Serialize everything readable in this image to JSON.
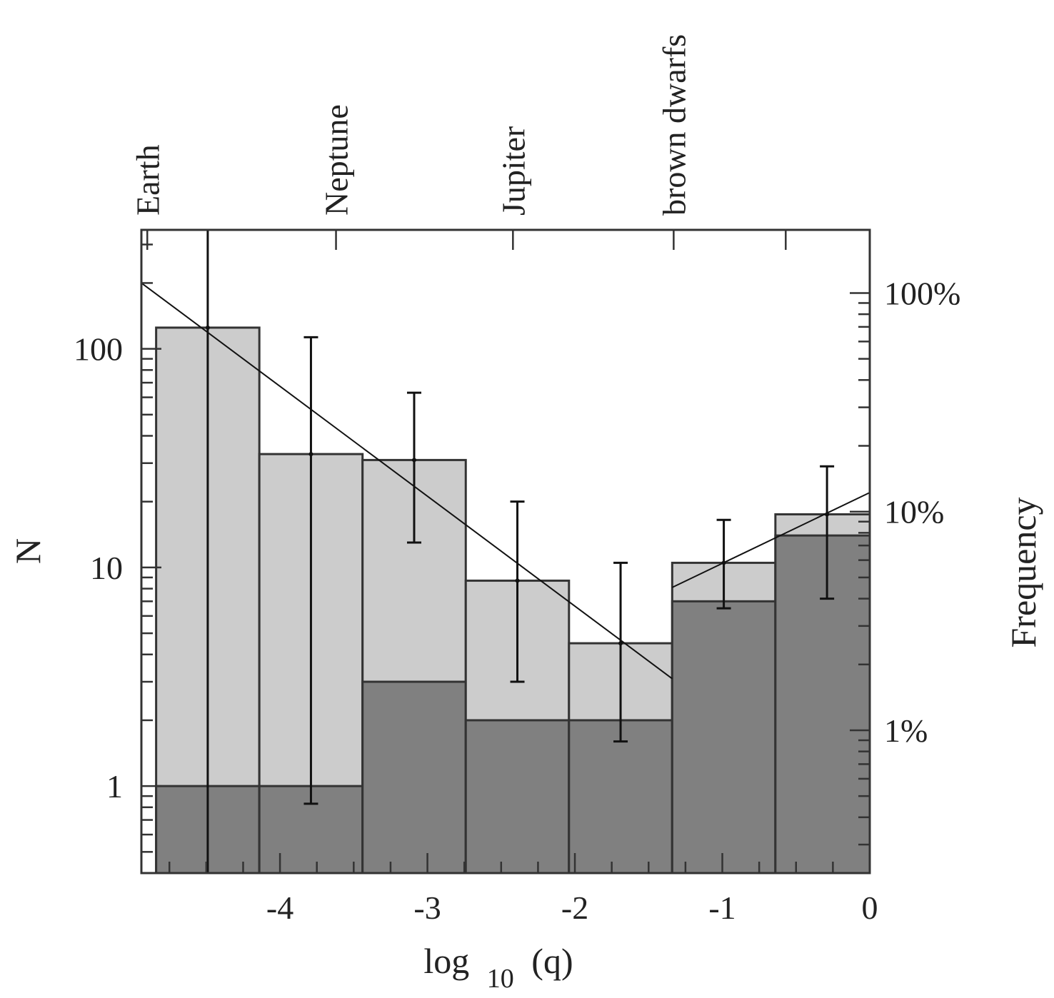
{
  "chart_data": {
    "type": "bar",
    "x_title_main": "log",
    "x_title_sub": "10",
    "x_title_tail": "(q)",
    "ylabel_left": "N",
    "ylabel_right": "Frequency",
    "xlim": [
      -4.94,
      0
    ],
    "ylim": [
      0.4,
      350
    ],
    "y_scale": "log",
    "x_ticks": [
      {
        "value": -4,
        "label": "-4"
      },
      {
        "value": -3,
        "label": "-3"
      },
      {
        "value": -2,
        "label": "-2"
      },
      {
        "value": -1,
        "label": "-1"
      },
      {
        "value": 0,
        "label": "0"
      }
    ],
    "y_ticks_left": [
      {
        "value": 1,
        "label": "1"
      },
      {
        "value": 10,
        "label": "10"
      },
      {
        "value": 100,
        "label": "100"
      }
    ],
    "y_ticks_right": [
      {
        "value": 1.8,
        "label": "1%"
      },
      {
        "value": 18,
        "label": "10%"
      },
      {
        "value": 180,
        "label": "100%"
      }
    ],
    "top_markers": [
      {
        "value": -4.9,
        "label": "Earth"
      },
      {
        "value": -3.62,
        "label": "Neptune"
      },
      {
        "value": -2.42,
        "label": "Jupiter"
      },
      {
        "value": -1.33,
        "label": "brown dwarfs"
      },
      {
        "value": -0.57,
        "label": ""
      }
    ],
    "bins": [
      {
        "x0": -4.84,
        "x1": -4.14,
        "total": 125,
        "detected": 1
      },
      {
        "x0": -4.14,
        "x1": -3.44,
        "total": 33,
        "detected": 1
      },
      {
        "x0": -3.44,
        "x1": -2.74,
        "total": 31,
        "detected": 3
      },
      {
        "x0": -2.74,
        "x1": -2.04,
        "total": 8.7,
        "detected": 2
      },
      {
        "x0": -2.04,
        "x1": -1.34,
        "total": 4.5,
        "detected": 2
      },
      {
        "x0": -1.34,
        "x1": -0.64,
        "total": 10.5,
        "detected": 7
      },
      {
        "x0": -0.64,
        "x1": 0.06,
        "total": 17.5,
        "detected": 14
      }
    ],
    "error_bars": [
      {
        "x": -4.49,
        "y": 125,
        "low": 0.4,
        "high": 350
      },
      {
        "x": -3.79,
        "y": 33,
        "low": 0.83,
        "high": 113
      },
      {
        "x": -3.09,
        "y": 31,
        "low": 13,
        "high": 63
      },
      {
        "x": -2.39,
        "y": 8.7,
        "low": 3,
        "high": 20
      },
      {
        "x": -1.69,
        "y": 4.5,
        "low": 1.6,
        "high": 10.5
      },
      {
        "x": -0.99,
        "y": 10.5,
        "low": 6.5,
        "high": 16.5
      },
      {
        "x": -0.29,
        "y": 17.5,
        "low": 7.2,
        "high": 29
      }
    ],
    "fit_lines": [
      {
        "from": [
          -4.94,
          200
        ],
        "to": [
          -1.34,
          3.1
        ]
      },
      {
        "from": [
          -1.34,
          8.1
        ],
        "to": [
          0,
          22
        ]
      }
    ],
    "colors": {
      "total_fill": "#cccccc",
      "detected_fill": "#808080",
      "outline": "#333333",
      "line": "#111111"
    }
  }
}
